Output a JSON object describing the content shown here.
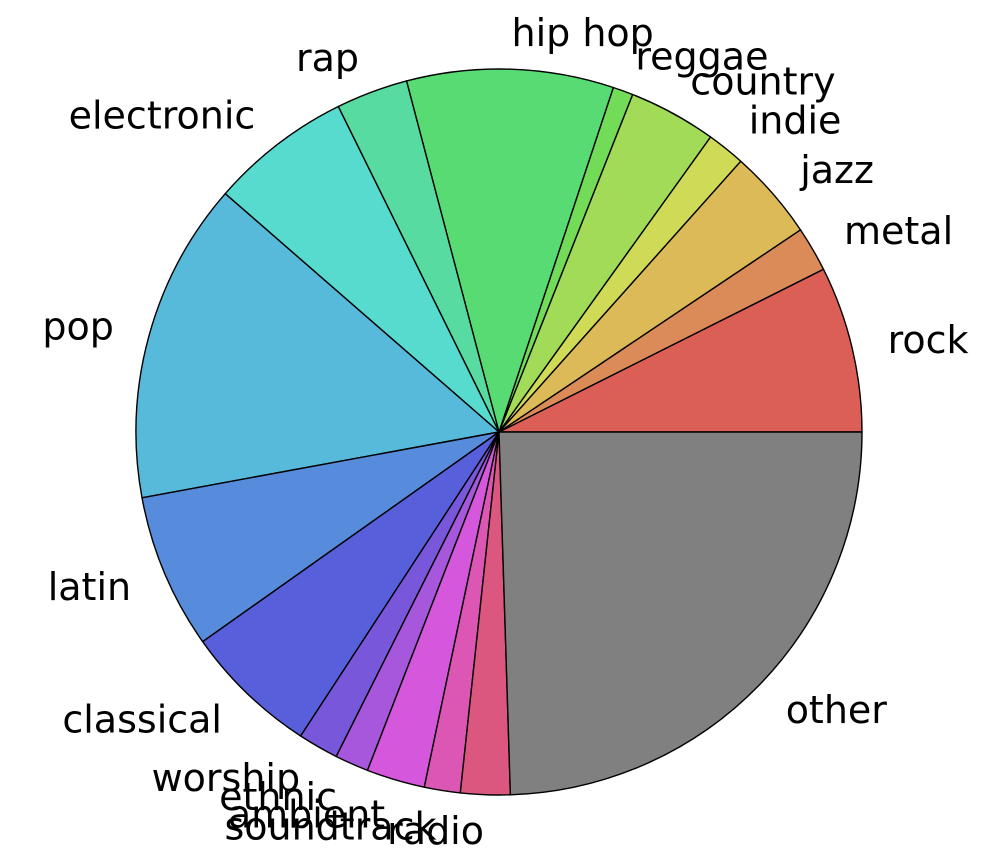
{
  "chart_data": {
    "type": "pie",
    "start_angle": 0,
    "direction": "counterclockwise",
    "slices": [
      {
        "label": "rock",
        "value": 7.4,
        "color": "#db5f57"
      },
      {
        "label": "metal",
        "value": 2.0,
        "color": "#db8b57"
      },
      {
        "label": "jazz",
        "value": 4.0,
        "color": "#dbba57"
      },
      {
        "label": "indie",
        "value": 1.7,
        "color": "#cfdb57"
      },
      {
        "label": "country",
        "value": 3.9,
        "color": "#a1db57"
      },
      {
        "label": "reggae",
        "value": 0.9,
        "color": "#72db57"
      },
      {
        "label": "hip hop",
        "value": 9.2,
        "color": "#57db72"
      },
      {
        "label": "rap",
        "value": 3.2,
        "color": "#57dba1"
      },
      {
        "label": "electronic",
        "value": 6.3,
        "color": "#57dbcf"
      },
      {
        "label": "pop",
        "value": 14.3,
        "color": "#57badb"
      },
      {
        "label": "latin",
        "value": 6.9,
        "color": "#578bdb"
      },
      {
        "label": "classical",
        "value": 6.0,
        "color": "#575fdb"
      },
      {
        "label": "worship",
        "value": 1.8,
        "color": "#7957db"
      },
      {
        "label": "ethnic",
        "value": 1.5,
        "color": "#a657db"
      },
      {
        "label": "ambient",
        "value": 2.6,
        "color": "#d557db"
      },
      {
        "label": "soundtrack",
        "value": 1.6,
        "color": "#db57b3"
      },
      {
        "label": "radio",
        "value": 2.2,
        "color": "#db5780"
      },
      {
        "label": "other",
        "value": 24.5,
        "color": "#808080"
      }
    ]
  }
}
